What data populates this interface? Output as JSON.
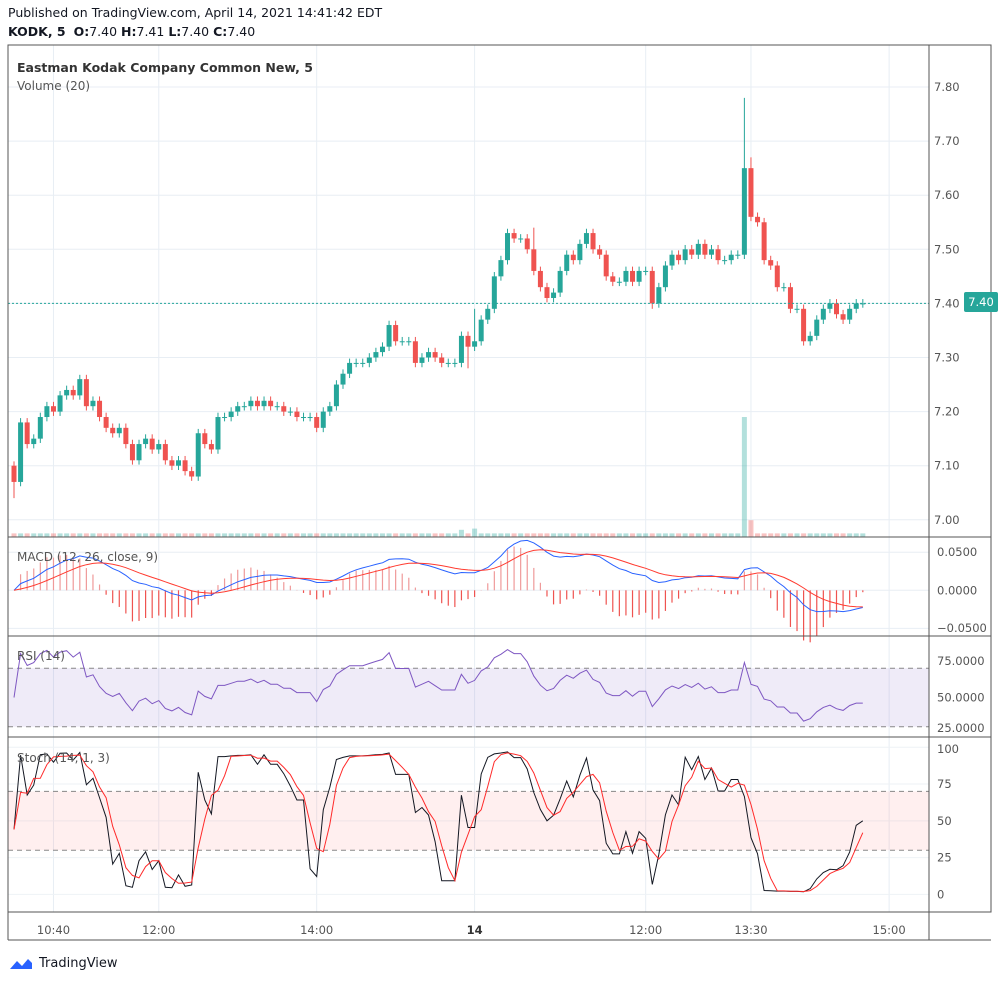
{
  "header": {
    "published": "Published on TradingView.com, April 14, 2021 14:41:42 EDT",
    "symbol": "KODK, 5",
    "o_label": "O:",
    "o": "7.40",
    "h_label": "H:",
    "h": "7.41",
    "l_label": "L:",
    "l": "7.40",
    "c_label": "C:",
    "c": "7.40"
  },
  "footer": {
    "brand": "TradingView"
  },
  "colors": {
    "up": "#26a69a",
    "down": "#ef5350",
    "macd": "#2962ff",
    "signal": "#ff3b30",
    "rsi": "#7e57c2",
    "stoch_k": "#131722",
    "stoch_d": "#ff2a2a"
  },
  "chart_data": {
    "type": "candlestick",
    "title": "Eastman Kodak Company Common New, 5",
    "volume_title": "Volume (20)",
    "current_price": 7.4,
    "current_price_label": "7.40",
    "price_ticks": [
      "7.80",
      "7.70",
      "7.60",
      "7.50",
      "7.40",
      "7.30",
      "7.20",
      "7.10",
      "7.00"
    ],
    "ylim": [
      7.0,
      7.8
    ],
    "time_ticks": [
      {
        "label": "10:40",
        "index": 6,
        "bold": false
      },
      {
        "label": "12:00",
        "index": 22,
        "bold": false
      },
      {
        "label": "14:00",
        "index": 46,
        "bold": false
      },
      {
        "label": "14",
        "index": 70,
        "bold": true
      },
      {
        "label": "12:00",
        "index": 96,
        "bold": false
      },
      {
        "label": "13:30",
        "index": 112,
        "bold": false
      },
      {
        "label": "15:00",
        "index": 133,
        "bold": false
      }
    ],
    "close": [
      7.07,
      7.18,
      7.14,
      7.15,
      7.19,
      7.21,
      7.2,
      7.23,
      7.24,
      7.23,
      7.26,
      7.21,
      7.22,
      7.19,
      7.17,
      7.16,
      7.17,
      7.14,
      7.11,
      7.14,
      7.15,
      7.13,
      7.14,
      7.11,
      7.1,
      7.11,
      7.09,
      7.08,
      7.16,
      7.14,
      7.13,
      7.19,
      7.19,
      7.2,
      7.21,
      7.21,
      7.22,
      7.21,
      7.22,
      7.21,
      7.21,
      7.2,
      7.2,
      7.19,
      7.19,
      7.19,
      7.17,
      7.2,
      7.21,
      7.25,
      7.27,
      7.29,
      7.29,
      7.29,
      7.3,
      7.31,
      7.32,
      7.36,
      7.33,
      7.33,
      7.33,
      7.29,
      7.3,
      7.31,
      7.3,
      7.29,
      7.29,
      7.29,
      7.34,
      7.32,
      7.33,
      7.37,
      7.39,
      7.45,
      7.48,
      7.53,
      7.52,
      7.52,
      7.5,
      7.46,
      7.43,
      7.41,
      7.42,
      7.46,
      7.49,
      7.48,
      7.51,
      7.53,
      7.5,
      7.49,
      7.45,
      7.44,
      7.44,
      7.46,
      7.44,
      7.46,
      7.46,
      7.4,
      7.43,
      7.47,
      7.49,
      7.48,
      7.5,
      7.49,
      7.51,
      7.49,
      7.5,
      7.48,
      7.48,
      7.49,
      7.49,
      7.65,
      7.56,
      7.55,
      7.48,
      7.47,
      7.43,
      7.43,
      7.39,
      7.39,
      7.33,
      7.34,
      7.37,
      7.39,
      7.4,
      7.38,
      7.37,
      7.39,
      7.4,
      7.4
    ],
    "first_open": 7.1,
    "high_overrides": {
      "70": 7.39,
      "79": 7.54,
      "111": 7.78,
      "112": 7.67
    },
    "low_overrides": {
      "0": 7.04,
      "69": 7.28,
      "97": 7.39
    },
    "volume_default": 3,
    "volume_overrides": {
      "111": 100,
      "112": 14,
      "68": 6,
      "70": 7
    },
    "macd": {
      "title": "MACD (12, 26, close, 9)",
      "ticks": [
        "0.0500",
        "0.0000",
        "−0.0500"
      ],
      "ylim": [
        -0.06,
        0.07
      ]
    },
    "rsi": {
      "title": "RSI (14)",
      "ticks": [
        "75.0000",
        "50.0000",
        "25.0000"
      ],
      "band": [
        30,
        70
      ],
      "ylim": [
        23,
        92
      ]
    },
    "stoch": {
      "title": "Stoch (14, 1, 3)",
      "ticks": [
        "100",
        "75",
        "50",
        "25",
        "0"
      ],
      "band": [
        30,
        70
      ],
      "ylim": [
        -12,
        107
      ]
    }
  }
}
